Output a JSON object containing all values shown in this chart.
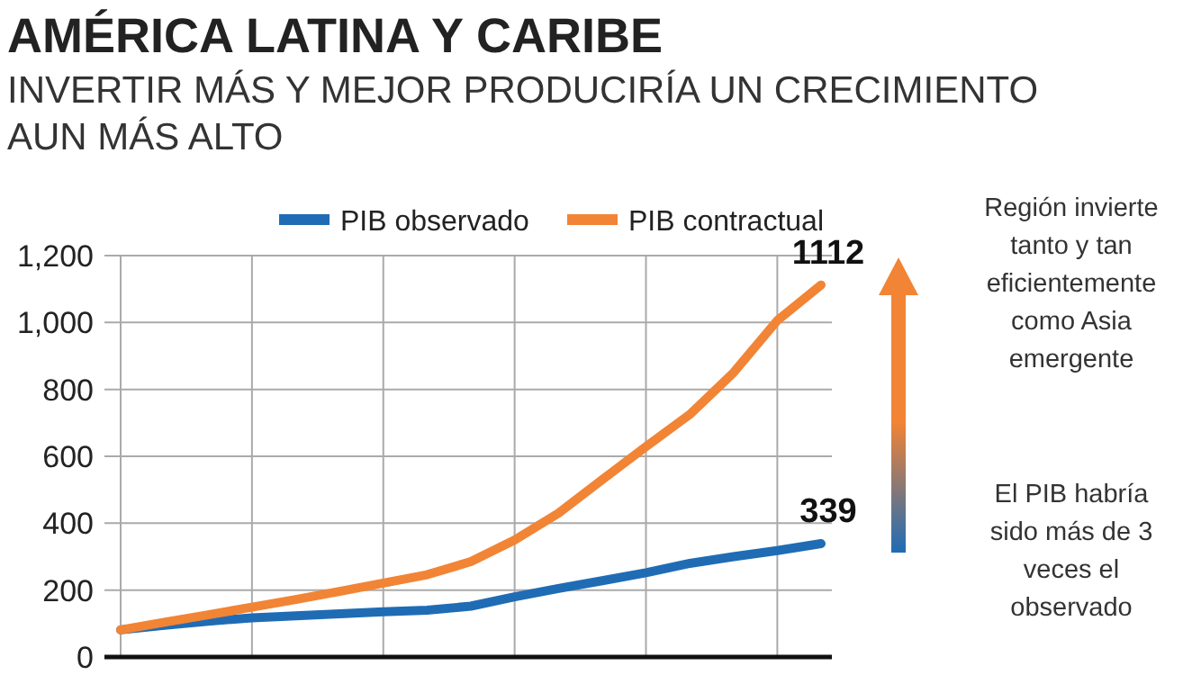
{
  "chart_data": {
    "type": "line",
    "title": "AMÉRICA LATINA Y CARIBE",
    "subtitle": "INVERTIR MÁS Y MEJOR PRODUCIRÍA UN CRECIMIENTO AUN MÁS ALTO",
    "categories": [
      null,
      null,
      null,
      null,
      null,
      null,
      null,
      null,
      null,
      null,
      null,
      null,
      null,
      null,
      null,
      null,
      null
    ],
    "series": [
      {
        "name": "PIB observado",
        "color": "#1f6cb5",
        "values": [
          81,
          95,
          107,
          117,
          123,
          129,
          135,
          140,
          152,
          180,
          205,
          228,
          252,
          280,
          300,
          318,
          339
        ],
        "value_labels": [
          null,
          null,
          null,
          null,
          null,
          null,
          null,
          null,
          null,
          null,
          null,
          null,
          null,
          null,
          null,
          null,
          "339"
        ]
      },
      {
        "name": "PIB contractual",
        "color": "#f28435",
        "values": [
          81,
          104,
          126,
          149,
          172,
          196,
          221,
          246,
          285,
          350,
          430,
          530,
          629,
          725,
          850,
          1006,
          1112
        ],
        "value_labels": [
          null,
          null,
          null,
          null,
          null,
          null,
          null,
          null,
          null,
          null,
          null,
          null,
          null,
          null,
          null,
          null,
          "1112"
        ]
      }
    ],
    "ylim": [
      0,
      1200
    ],
    "yticks": [
      0,
      200,
      400,
      600,
      800,
      {
        "value": 1000,
        "label": "1,000"
      },
      {
        "value": 1200,
        "label": "1,200"
      }
    ],
    "tick_labels": "y",
    "grid": true,
    "legend": "top",
    "line_style": "solid",
    "marker": "none",
    "annotations": [
      "Región invierte tanto y tan eficientemente como Asia emergente",
      "El PIB habría sido más de 3 veces el observado"
    ]
  }
}
